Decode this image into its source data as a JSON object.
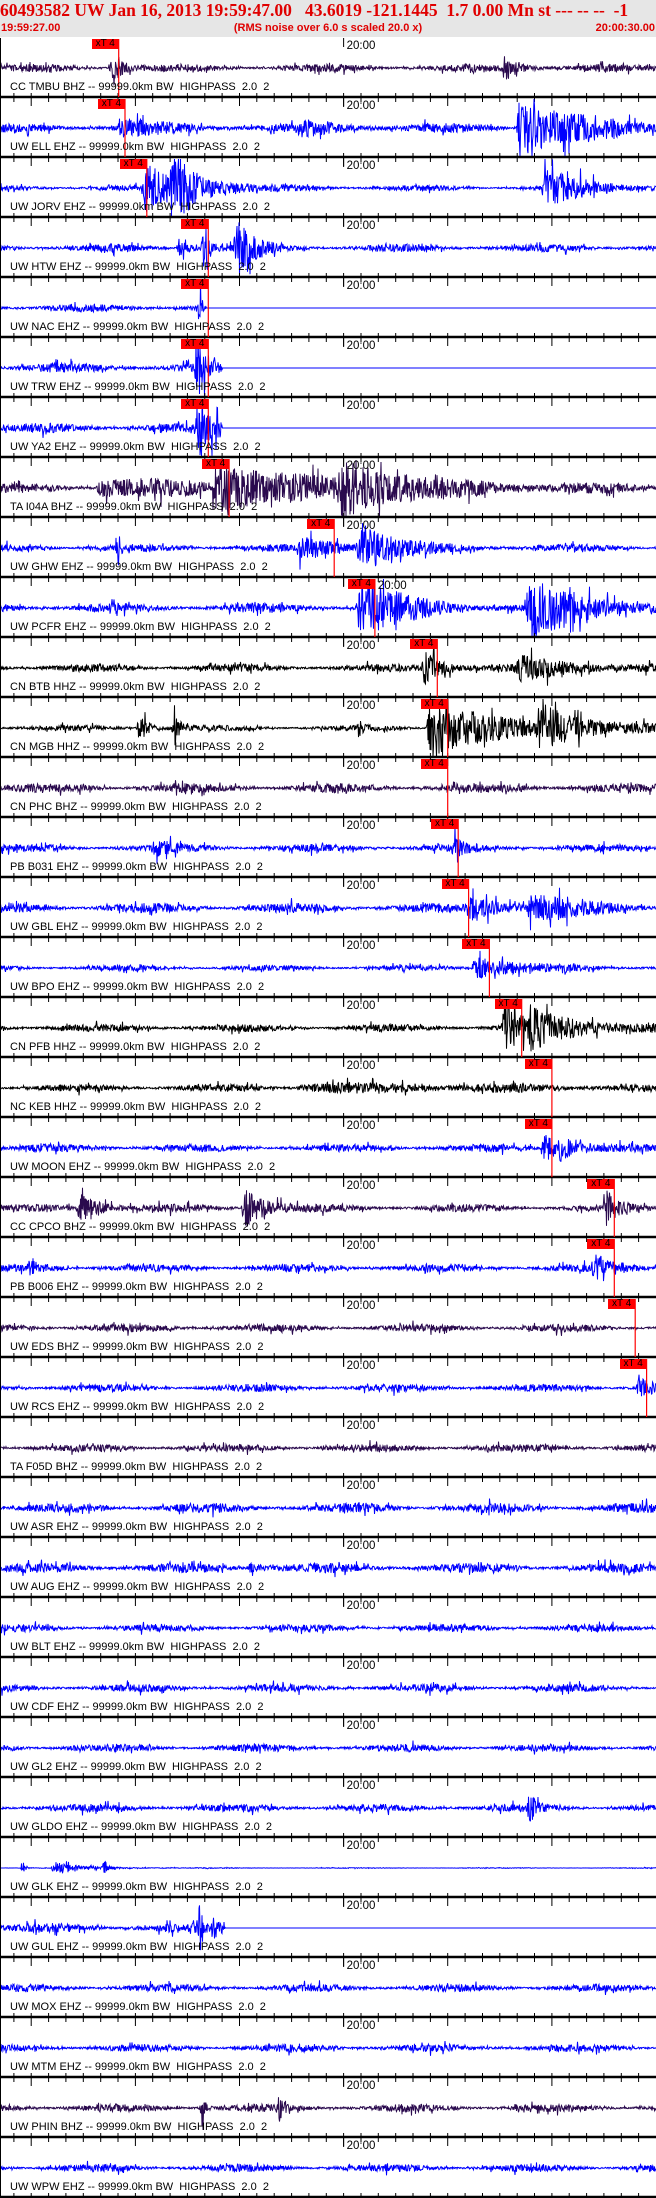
{
  "header": {
    "title": "60493582 UW Jan 16, 2013 19:59:47.00   43.6019 -121.1445  1.7 0.00 Mn st --- -- --  -1",
    "start_time": "19:59:27.00",
    "note": "(RMS noise over 6.0 s scaled 20.0 x)",
    "end_time": "20:00:30.00"
  },
  "chart_data": {
    "type": "line",
    "x_range_s": [
      0,
      63
    ],
    "x_tick_label": "20:00",
    "x_tick_label_offset_s": 33,
    "pick_label": "xT 4",
    "colors": {
      "pick": "#ff0000",
      "axis": "#000000"
    },
    "series": [
      {
        "name": "CC TMBU BHZ -- 99999.0km BW  HIGHPASS  2.0  2",
        "color": "#2a0a4e",
        "pick_s": 11.4
      },
      {
        "name": "UW ELL EHZ -- 99999.0km BW  HIGHPASS  2.0  2",
        "color": "#0000ff",
        "pick_s": 12.0
      },
      {
        "name": "UW JORV EHZ -- 99999.0km BW  HIGHPASS  2.0  2",
        "color": "#0000ff",
        "pick_s": 14.1
      },
      {
        "name": "UW HTW EHZ -- 99999.0km BW  HIGHPASS  2.0  2",
        "color": "#0000ff",
        "pick_s": 20.0
      },
      {
        "name": "UW NAC EHZ -- 99999.0km BW  HIGHPASS  2.0  2",
        "color": "#0000ff",
        "pick_s": 20.0
      },
      {
        "name": "UW TRW EHZ -- 99999.0km BW  HIGHPASS  2.0  2",
        "color": "#0000ff",
        "pick_s": 20.0
      },
      {
        "name": "UW YA2 EHZ -- 99999.0km BW  HIGHPASS  2.0  2",
        "color": "#0000ff",
        "pick_s": 20.0
      },
      {
        "name": "TA I04A BHZ -- 99999.0km BW  HIGHPASS  2.0  2",
        "color": "#2a0a4e",
        "pick_s": 22.0
      },
      {
        "name": "UW GHW EHZ -- 99999.0km BW  HIGHPASS  2.0  2",
        "color": "#0000ff",
        "pick_s": 32.1
      },
      {
        "name": "UW PCFR EHZ -- 99999.0km BW  HIGHPASS  2.0  2",
        "color": "#0000ff",
        "pick_s": 36.0
      },
      {
        "name": "CN BTB HHZ -- 99999.0km BW  HIGHPASS  2.0  2",
        "color": "#000000",
        "pick_s": 42.0
      },
      {
        "name": "CN MGB HHZ -- 99999.0km BW  HIGHPASS  2.0  2",
        "color": "#000000",
        "pick_s": 43.0
      },
      {
        "name": "CN PHC BHZ -- 99999.0km BW  HIGHPASS  2.0  2",
        "color": "#2a0a4e",
        "pick_s": 43.0
      },
      {
        "name": "PB B031 EHZ -- 99999.0km BW  HIGHPASS  2.0  2",
        "color": "#0000ff",
        "pick_s": 44.0
      },
      {
        "name": "UW GBL EHZ -- 99999.0km BW  HIGHPASS  2.0  2",
        "color": "#0000ff",
        "pick_s": 45.0
      },
      {
        "name": "UW BPO EHZ -- 99999.0km BW  HIGHPASS  2.0  2",
        "color": "#0000ff",
        "pick_s": 47.0
      },
      {
        "name": "CN PFB HHZ -- 99999.0km BW  HIGHPASS  2.0  2",
        "color": "#000000",
        "pick_s": 50.1
      },
      {
        "name": "NC KEB HHZ -- 99999.0km BW  HIGHPASS  2.0  2",
        "color": "#000000",
        "pick_s": 53.0
      },
      {
        "name": "UW MOON EHZ -- 99999.0km BW  HIGHPASS  2.0  2",
        "color": "#0000ff",
        "pick_s": 53.0
      },
      {
        "name": "CC CPCO BHZ -- 99999.0km BW  HIGHPASS  2.0  2",
        "color": "#2a0a4e",
        "pick_s": 59.0
      },
      {
        "name": "PB B006 EHZ -- 99999.0km BW  HIGHPASS  2.0  2",
        "color": "#0000ff",
        "pick_s": 59.0
      },
      {
        "name": "UW EDS BHZ -- 99999.0km BW  HIGHPASS  2.0  2",
        "color": "#2a0a4e",
        "pick_s": 61.0
      },
      {
        "name": "UW RCS EHZ -- 99999.0km BW  HIGHPASS  2.0  2",
        "color": "#0000ff",
        "pick_s": 62.1
      },
      {
        "name": "TA F05D BHZ -- 99999.0km BW  HIGHPASS  2.0  2",
        "color": "#2a0a4e",
        "pick_s": null
      },
      {
        "name": "UW ASR EHZ -- 99999.0km BW  HIGHPASS  2.0  2",
        "color": "#0000ff",
        "pick_s": null
      },
      {
        "name": "UW AUG EHZ -- 99999.0km BW  HIGHPASS  2.0  2",
        "color": "#0000ff",
        "pick_s": null
      },
      {
        "name": "UW BLT EHZ -- 99999.0km BW  HIGHPASS  2.0  2",
        "color": "#0000ff",
        "pick_s": null
      },
      {
        "name": "UW CDF EHZ -- 99999.0km BW  HIGHPASS  2.0  2",
        "color": "#0000ff",
        "pick_s": null
      },
      {
        "name": "UW GL2 EHZ -- 99999.0km BW  HIGHPASS  2.0  2",
        "color": "#0000ff",
        "pick_s": null
      },
      {
        "name": "UW GLDO EHZ -- 99999.0km BW  HIGHPASS  2.0  2",
        "color": "#0000ff",
        "pick_s": null
      },
      {
        "name": "UW GLK EHZ -- 99999.0km BW  HIGHPASS  2.0  2",
        "color": "#0000ff",
        "pick_s": null
      },
      {
        "name": "UW GUL EHZ -- 99999.0km BW  HIGHPASS  2.0  2",
        "color": "#0000ff",
        "pick_s": null
      },
      {
        "name": "UW MOX EHZ -- 99999.0km BW  HIGHPASS  2.0  2",
        "color": "#0000ff",
        "pick_s": null
      },
      {
        "name": "UW MTM EHZ -- 99999.0km BW  HIGHPASS  2.0  2",
        "color": "#0000ff",
        "pick_s": null
      },
      {
        "name": "UW PHIN BHZ -- 99999.0km BW  HIGHPASS  2.0  2",
        "color": "#2a0a4e",
        "pick_s": null
      },
      {
        "name": "UW WPW EHZ -- 99999.0km BW  HIGHPASS  2.0  2",
        "color": "#0000ff",
        "pick_s": null
      }
    ]
  }
}
